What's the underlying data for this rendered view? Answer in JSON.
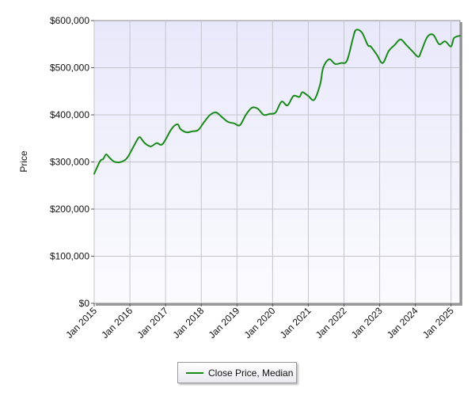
{
  "chart_data": {
    "type": "line",
    "title": "",
    "xlabel": "",
    "ylabel": "Price",
    "ylim": [
      0,
      600000
    ],
    "xlim": [
      "2015-01",
      "2025-04"
    ],
    "grid": true,
    "legend_position": "bottom",
    "y_ticks": [
      {
        "value": 0,
        "label": "$0"
      },
      {
        "value": 100000,
        "label": "$100,000"
      },
      {
        "value": 200000,
        "label": "$200,000"
      },
      {
        "value": 300000,
        "label": "$300,000"
      },
      {
        "value": 400000,
        "label": "$400,000"
      },
      {
        "value": 500000,
        "label": "$500,000"
      },
      {
        "value": 600000,
        "label": "$600,000"
      }
    ],
    "x_ticks": [
      {
        "value": "2015-01",
        "label": "Jan 2015"
      },
      {
        "value": "2016-01",
        "label": "Jan 2016"
      },
      {
        "value": "2017-01",
        "label": "Jan 2017"
      },
      {
        "value": "2018-01",
        "label": "Jan 2018"
      },
      {
        "value": "2019-01",
        "label": "Jan 2019"
      },
      {
        "value": "2020-01",
        "label": "Jan 2020"
      },
      {
        "value": "2021-01",
        "label": "Jan 2021"
      },
      {
        "value": "2022-01",
        "label": "Jan 2022"
      },
      {
        "value": "2023-01",
        "label": "Jan 2023"
      },
      {
        "value": "2024-01",
        "label": "Jan 2024"
      },
      {
        "value": "2025-01",
        "label": "Jan 2025"
      }
    ],
    "series": [
      {
        "name": "Close Price, Median",
        "color": "#1a8a1a",
        "points": [
          [
            "2015-01",
            275000
          ],
          [
            "2015-03",
            302000
          ],
          [
            "2015-04",
            306000
          ],
          [
            "2015-05",
            316000
          ],
          [
            "2015-06",
            310000
          ],
          [
            "2015-07",
            304000
          ],
          [
            "2015-08",
            300000
          ],
          [
            "2015-10",
            300000
          ],
          [
            "2015-12",
            308000
          ],
          [
            "2016-02",
            330000
          ],
          [
            "2016-04",
            352000
          ],
          [
            "2016-05",
            348000
          ],
          [
            "2016-06",
            340000
          ],
          [
            "2016-08",
            333000
          ],
          [
            "2016-10",
            340000
          ],
          [
            "2016-12",
            338000
          ],
          [
            "2017-03",
            370000
          ],
          [
            "2017-05",
            380000
          ],
          [
            "2017-06",
            370000
          ],
          [
            "2017-08",
            363000
          ],
          [
            "2017-10",
            365000
          ],
          [
            "2017-12",
            368000
          ],
          [
            "2018-02",
            385000
          ],
          [
            "2018-04",
            400000
          ],
          [
            "2018-06",
            405000
          ],
          [
            "2018-08",
            395000
          ],
          [
            "2018-10",
            385000
          ],
          [
            "2018-12",
            382000
          ],
          [
            "2019-02",
            378000
          ],
          [
            "2019-04",
            400000
          ],
          [
            "2019-06",
            415000
          ],
          [
            "2019-08",
            413000
          ],
          [
            "2019-10",
            400000
          ],
          [
            "2019-12",
            402000
          ],
          [
            "2020-02",
            405000
          ],
          [
            "2020-04",
            428000
          ],
          [
            "2020-06",
            420000
          ],
          [
            "2020-08",
            440000
          ],
          [
            "2020-10",
            438000
          ],
          [
            "2020-11",
            448000
          ],
          [
            "2021-01",
            440000
          ],
          [
            "2021-03",
            432000
          ],
          [
            "2021-05",
            465000
          ],
          [
            "2021-06",
            500000
          ],
          [
            "2021-08",
            518000
          ],
          [
            "2021-10",
            508000
          ],
          [
            "2021-12",
            510000
          ],
          [
            "2022-02",
            515000
          ],
          [
            "2022-04",
            562000
          ],
          [
            "2022-05",
            580000
          ],
          [
            "2022-07",
            575000
          ],
          [
            "2022-09",
            548000
          ],
          [
            "2022-10",
            545000
          ],
          [
            "2022-12",
            528000
          ],
          [
            "2023-02",
            510000
          ],
          [
            "2023-04",
            535000
          ],
          [
            "2023-06",
            548000
          ],
          [
            "2023-08",
            560000
          ],
          [
            "2023-10",
            548000
          ],
          [
            "2023-12",
            535000
          ],
          [
            "2024-02",
            523000
          ],
          [
            "2024-03",
            535000
          ],
          [
            "2024-05",
            565000
          ],
          [
            "2024-07",
            570000
          ],
          [
            "2024-09",
            550000
          ],
          [
            "2024-11",
            556000
          ],
          [
            "2025-01",
            545000
          ],
          [
            "2025-02",
            563000
          ],
          [
            "2025-04",
            568000
          ]
        ]
      }
    ]
  }
}
